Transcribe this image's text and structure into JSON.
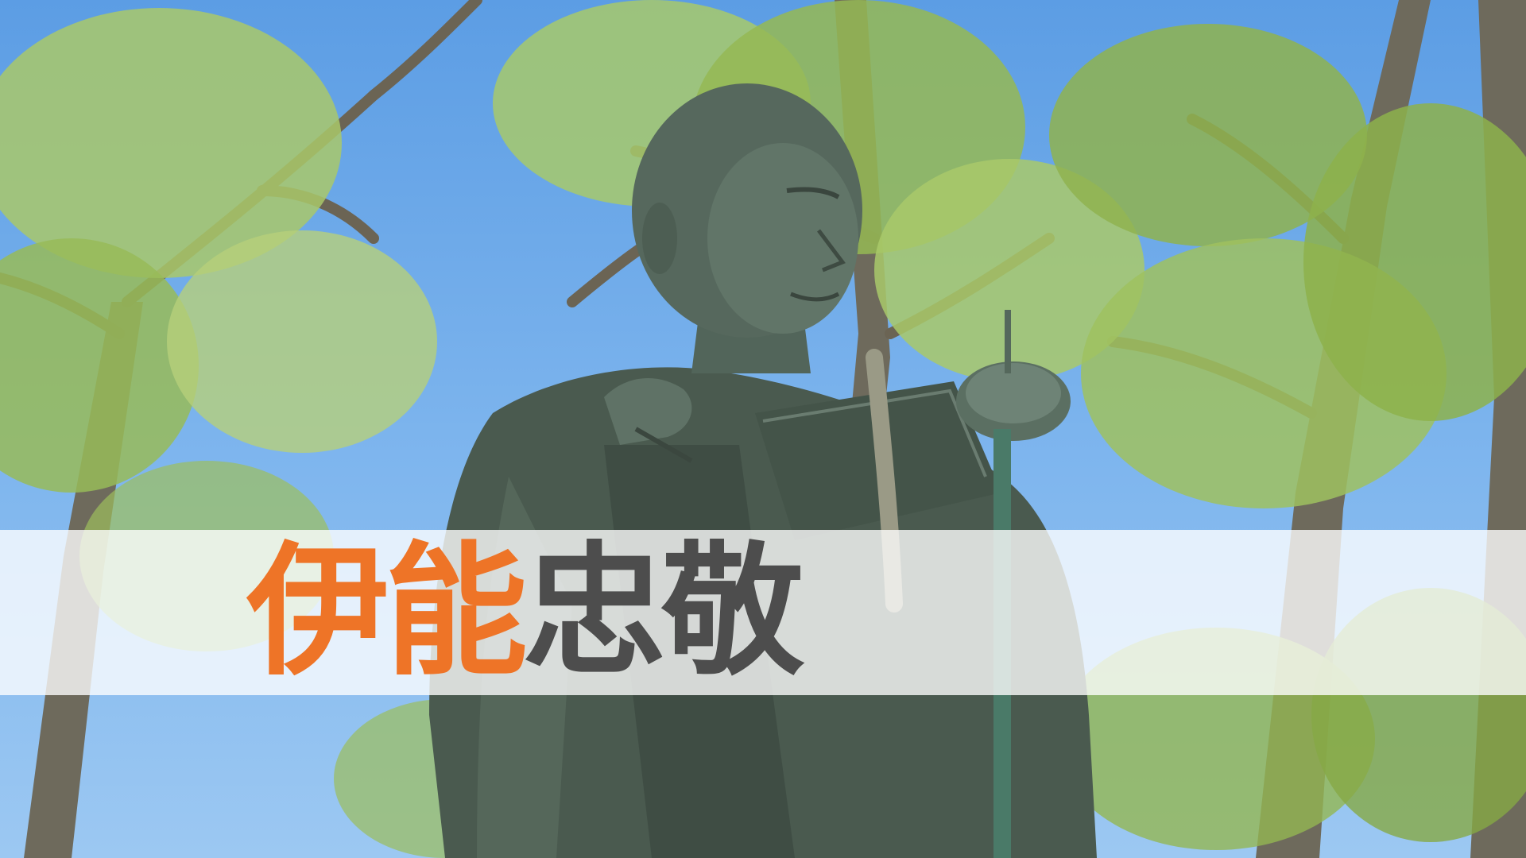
{
  "title": {
    "accent_text": "伊能",
    "rest_text": "忠敬"
  },
  "colors": {
    "accent": "#ee7427",
    "rest": "#4d4d4d",
    "band": "#ffffff",
    "sky": "#6aa9e6",
    "bronze": "#4f5e52",
    "foliage": "#9cc25a"
  }
}
